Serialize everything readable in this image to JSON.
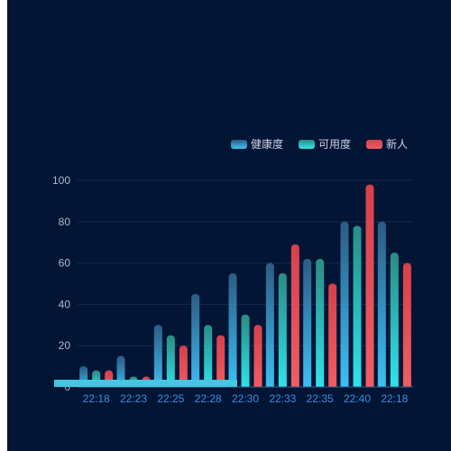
{
  "chart_data": {
    "type": "bar",
    "categories": [
      "22:18",
      "22:23",
      "22:25",
      "22:28",
      "22:30",
      "22:33",
      "22:35",
      "22:40",
      "22:18"
    ],
    "series": [
      {
        "name": "健康度",
        "values": [
          10,
          15,
          30,
          45,
          55,
          60,
          62,
          80,
          80
        ]
      },
      {
        "name": "可用度",
        "values": [
          8,
          5,
          25,
          30,
          35,
          55,
          62,
          78,
          65
        ]
      },
      {
        "name": "新人",
        "values": [
          8,
          5,
          20,
          25,
          30,
          69,
          50,
          98,
          60
        ]
      }
    ],
    "ylim": [
      0,
      100
    ],
    "yticks": [
      0,
      20,
      40,
      60,
      80,
      100
    ],
    "legend_position": "top-right",
    "grid": true,
    "datazoom_slider": {
      "start": 0,
      "end": 0.51
    },
    "colors": {
      "background": "#021535",
      "gridline": "#152a4d",
      "axis_line": "#3b5e8f",
      "tick_label_y": "#aeb8c8",
      "tick_label_x": "#3a8fe0",
      "legend_text": "#c9d3e3",
      "slider": "#45c6e3",
      "series": [
        {
          "top": "#2b5c84",
          "bottom": "#3ec1f5"
        },
        {
          "top": "#2a8c84",
          "bottom": "#30e5ee"
        },
        {
          "top": "#d6404a",
          "bottom": "#f05e64"
        }
      ]
    }
  }
}
